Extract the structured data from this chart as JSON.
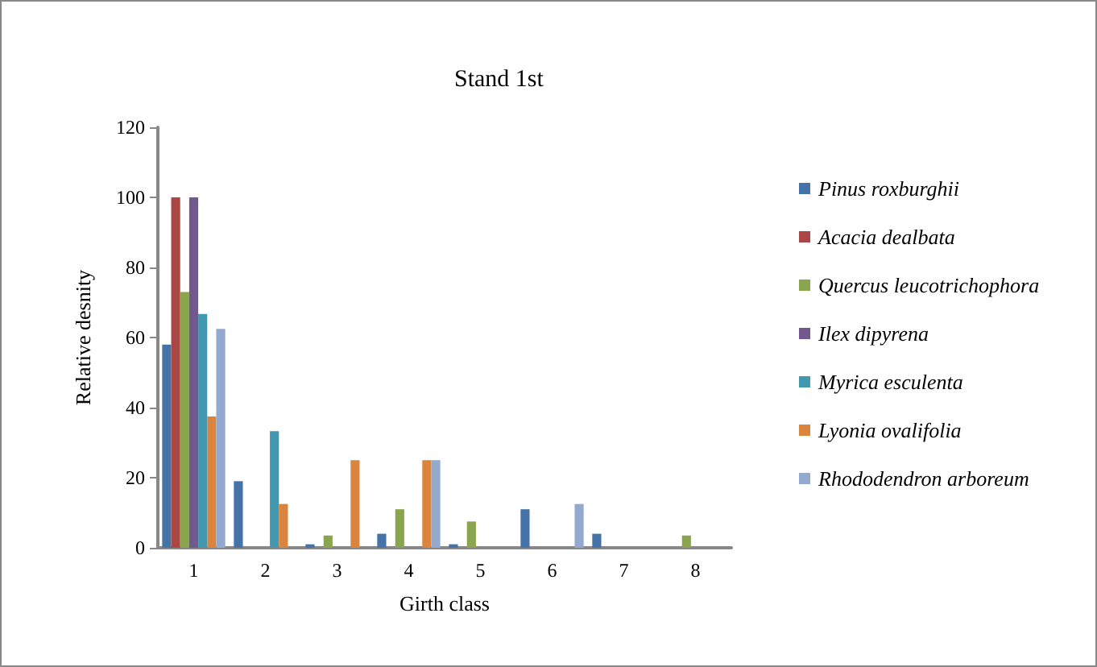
{
  "chart_data": {
    "type": "bar",
    "title": "Stand 1st",
    "xlabel": "Girth class",
    "ylabel": "Relative desnity",
    "categories": [
      "1",
      "2",
      "3",
      "4",
      "5",
      "6",
      "7",
      "8"
    ],
    "series": [
      {
        "name": "Pinus roxburghii",
        "color": "#4572a7",
        "values": [
          58,
          19,
          1,
          4,
          1,
          11,
          4,
          0
        ]
      },
      {
        "name": "Acacia dealbata",
        "color": "#aa4643",
        "values": [
          100,
          0,
          0,
          0,
          0,
          0,
          0,
          0
        ]
      },
      {
        "name": "Quercus leucotrichophora",
        "color": "#89a54e",
        "values": [
          73,
          0,
          3.5,
          11,
          7.5,
          0,
          0,
          3.5
        ]
      },
      {
        "name": "Ilex dipyrena",
        "color": "#71588f",
        "values": [
          100,
          0,
          0,
          0,
          0,
          0,
          0,
          0
        ]
      },
      {
        "name": "Myrica esculenta",
        "color": "#4198af",
        "values": [
          66.7,
          33.3,
          0,
          0,
          0,
          0,
          0,
          0
        ]
      },
      {
        "name": "Lyonia ovalifolia",
        "color": "#db843d",
        "values": [
          37.5,
          12.5,
          25,
          25,
          0,
          0,
          0,
          0
        ]
      },
      {
        "name": "Rhododendron arboreum",
        "color": "#93a9cf",
        "values": [
          62.5,
          0,
          0,
          25,
          0,
          12.5,
          0,
          0
        ]
      }
    ],
    "ylim": [
      0,
      120
    ],
    "yticks": [
      0,
      20,
      40,
      60,
      80,
      100,
      120
    ],
    "grid": false,
    "legend": "right"
  }
}
